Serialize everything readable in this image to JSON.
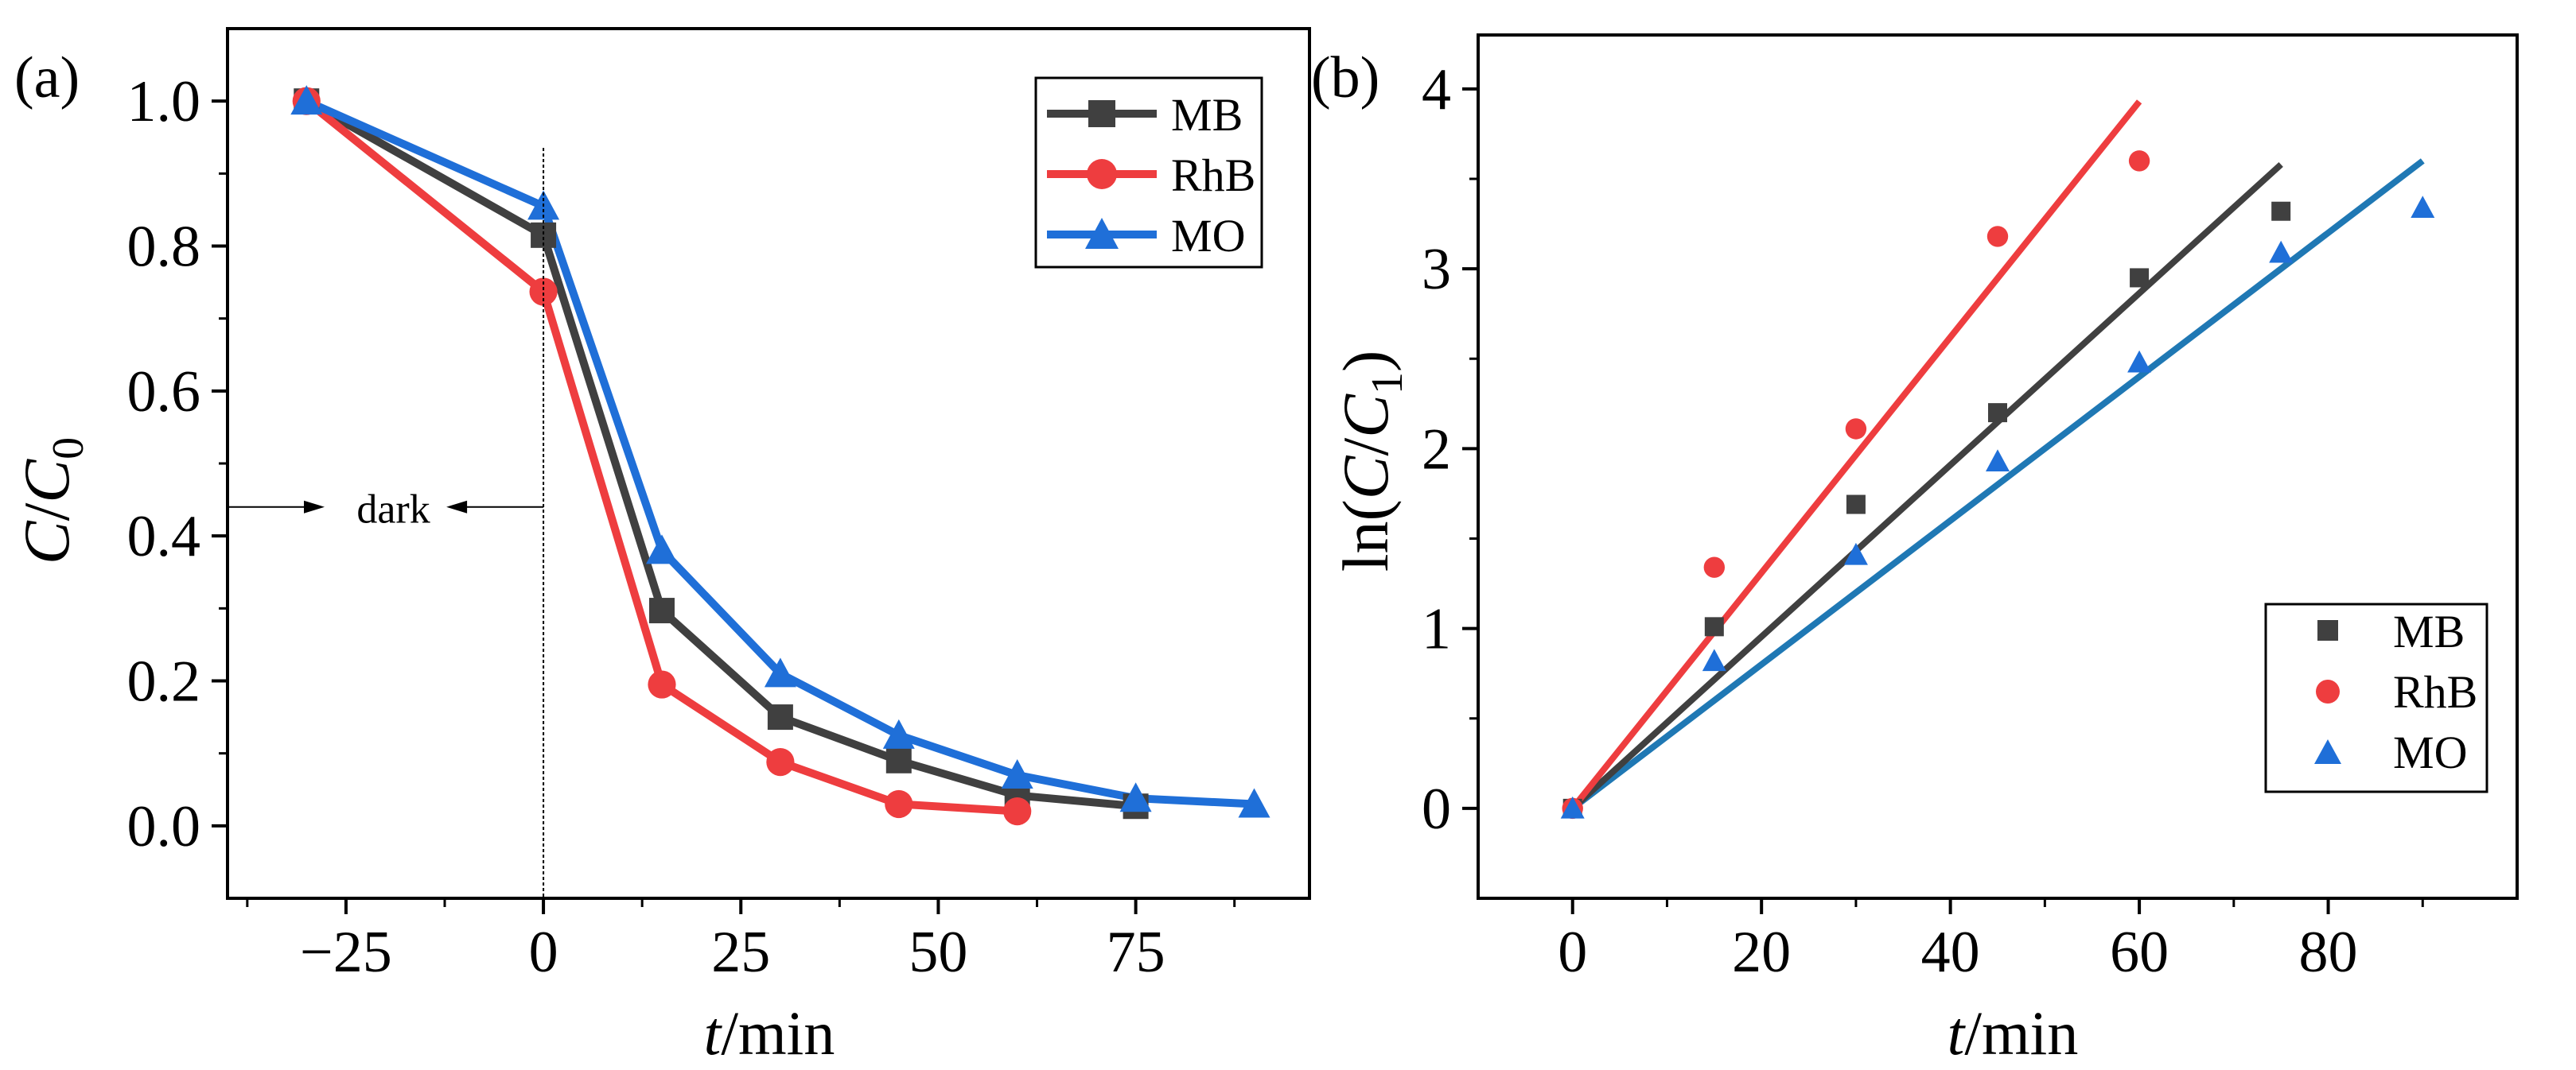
{
  "colors": {
    "MB": "#404040",
    "RhB": "#ee3d3f",
    "MO": "#1f6fd8",
    "MO_fit": "#1f78b4",
    "axis": "#000000"
  },
  "chart_data": [
    {
      "type": "line",
      "panel_label": "(a)",
      "xlabel_var": "t",
      "xlabel_unit": "/min",
      "ylabel_var1": "C",
      "ylabel_slash": "/",
      "ylabel_var2": "C",
      "ylabel_sub": "0",
      "xlim": [
        -40,
        97
      ],
      "ylim": [
        -0.1,
        1.1
      ],
      "xticks": [
        -25,
        0,
        25,
        50,
        75
      ],
      "xtick_labels": [
        "−25",
        "0",
        "25",
        "50",
        "75"
      ],
      "yticks": [
        0.0,
        0.2,
        0.4,
        0.6,
        0.8,
        1.0
      ],
      "ytick_labels": [
        "0.0",
        "0.2",
        "0.4",
        "0.6",
        "0.8",
        "1.0"
      ],
      "legend_position": "top-right",
      "annotation": {
        "text": "dark",
        "x_start": -40,
        "x_end": 0,
        "y": 0.44
      },
      "series": [
        {
          "name": "MB",
          "marker": "square",
          "x": [
            -30,
            0,
            15,
            30,
            45,
            60,
            75
          ],
          "values": [
            1.0,
            0.815,
            0.297,
            0.15,
            0.09,
            0.042,
            0.027
          ]
        },
        {
          "name": "RhB",
          "marker": "circle",
          "x": [
            -30,
            0,
            15,
            30,
            45,
            60
          ],
          "values": [
            1.0,
            0.737,
            0.195,
            0.088,
            0.03,
            0.02
          ]
        },
        {
          "name": "MO",
          "marker": "triangle",
          "x": [
            -30,
            0,
            15,
            30,
            45,
            60,
            75,
            90
          ],
          "values": [
            1.0,
            0.855,
            0.38,
            0.21,
            0.125,
            0.07,
            0.038,
            0.03
          ]
        }
      ]
    },
    {
      "type": "scatter",
      "panel_label": "(b)",
      "xlabel_var": "t",
      "xlabel_unit": "/min",
      "ylabel_prefix": "ln(",
      "ylabel_var1": "C",
      "ylabel_slash": "/",
      "ylabel_var2": "C",
      "ylabel_sub": "1",
      "ylabel_suffix": ")",
      "xlim": [
        -10,
        100
      ],
      "ylim": [
        -0.5,
        4.3
      ],
      "xticks": [
        0,
        20,
        40,
        60,
        80
      ],
      "xtick_labels": [
        "0",
        "20",
        "40",
        "60",
        "80"
      ],
      "yticks": [
        0,
        1,
        2,
        3,
        4
      ],
      "ytick_labels": [
        "0",
        "1",
        "2",
        "3",
        "4"
      ],
      "legend_position": "bottom-right",
      "series": [
        {
          "name": "MB",
          "marker": "square",
          "x": [
            0,
            15,
            30,
            45,
            60,
            75
          ],
          "values": [
            0,
            1.01,
            1.69,
            2.2,
            2.95,
            3.32
          ],
          "fit": {
            "x": [
              0,
              75
            ],
            "y": [
              0,
              3.58
            ]
          }
        },
        {
          "name": "RhB",
          "marker": "circle",
          "x": [
            0,
            15,
            30,
            45,
            60
          ],
          "values": [
            0,
            1.34,
            2.11,
            3.18,
            3.6
          ],
          "fit": {
            "x": [
              0,
              60
            ],
            "y": [
              0,
              3.93
            ]
          }
        },
        {
          "name": "MO",
          "marker": "triangle",
          "x": [
            0,
            15,
            30,
            45,
            60,
            75,
            90
          ],
          "values": [
            0,
            0.82,
            1.41,
            1.93,
            2.48,
            3.09,
            3.34
          ],
          "fit": {
            "x": [
              0,
              90
            ],
            "y": [
              0,
              3.6
            ]
          }
        }
      ]
    }
  ]
}
